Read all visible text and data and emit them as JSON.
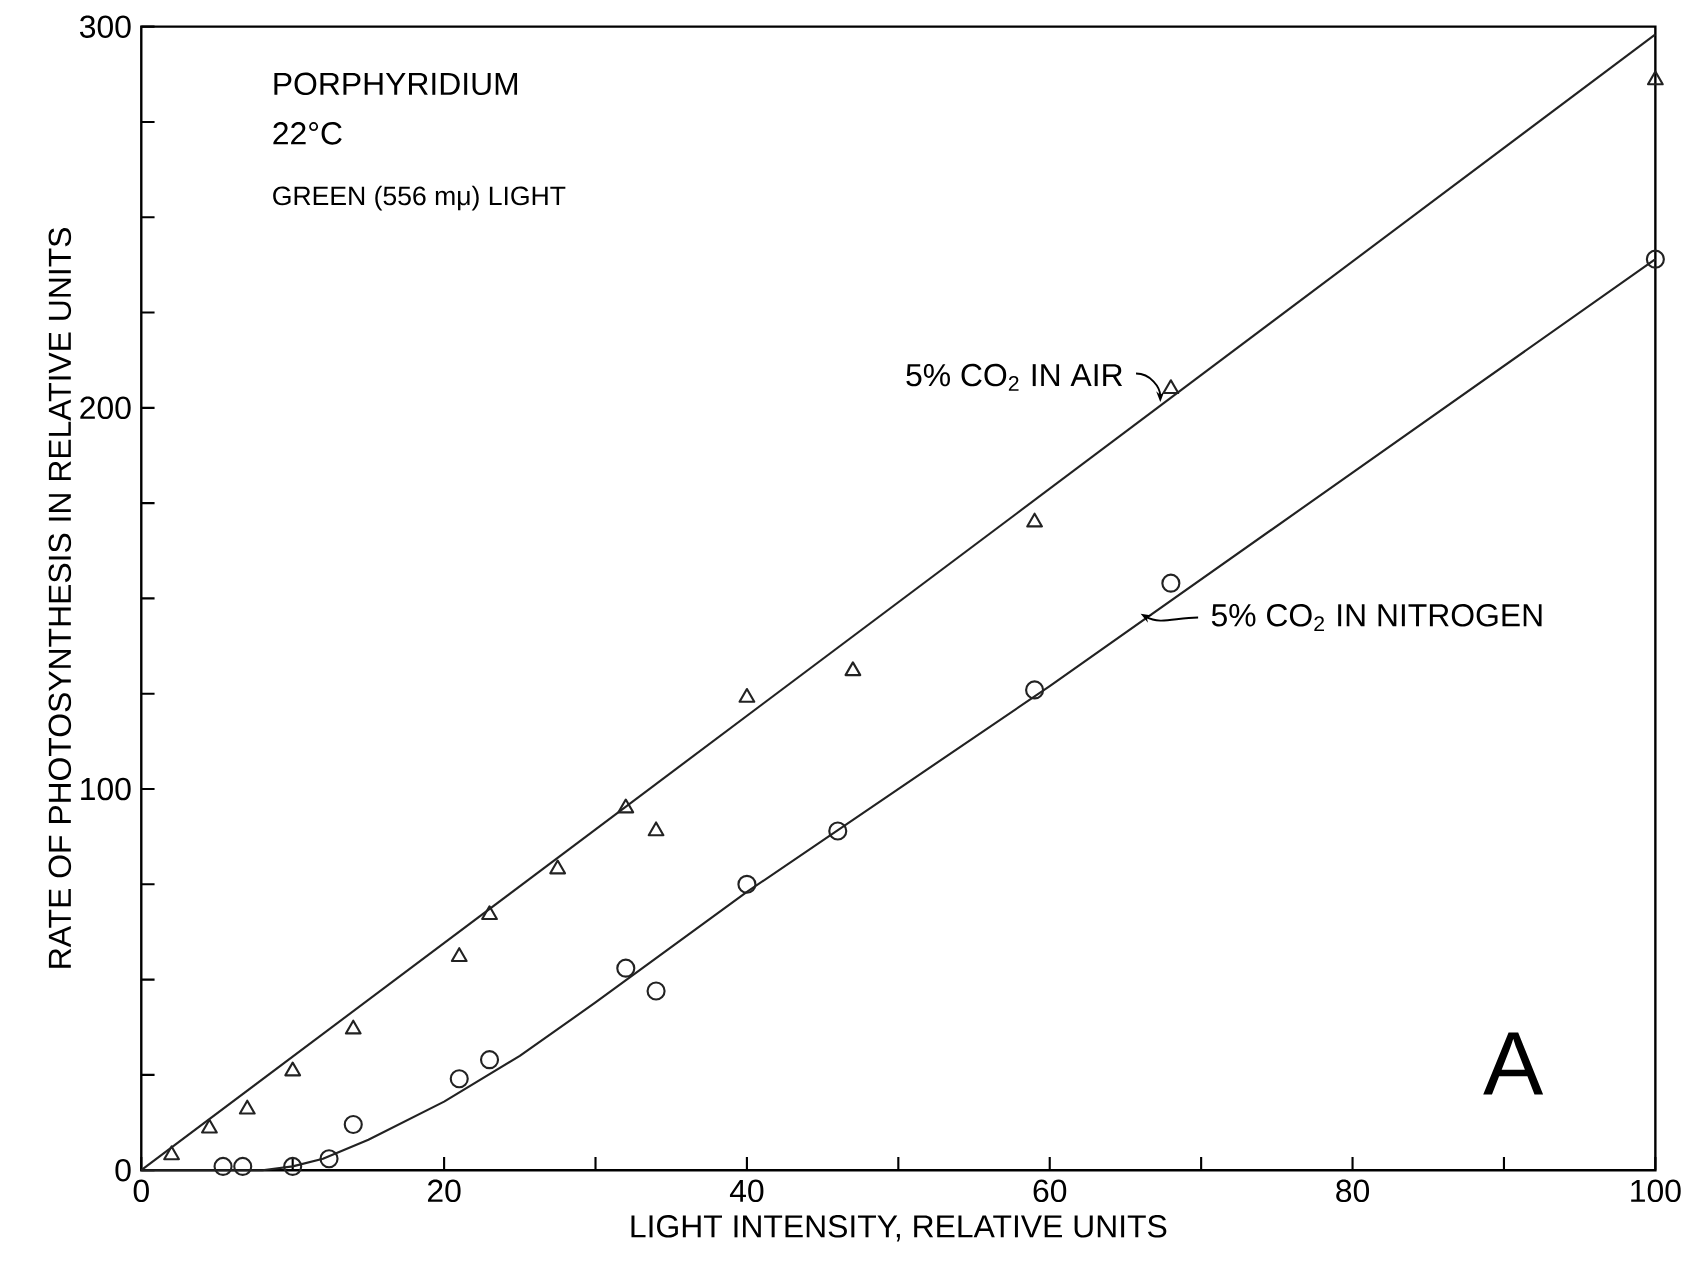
{
  "chart_data": {
    "type": "scatter",
    "xlabel": "LIGHT INTENSITY, RELATIVE UNITS",
    "ylabel": "RATE OF PHOTOSYNTHESIS IN RELATIVE UNITS",
    "annotations": [
      "PORPHYRIDIUM",
      "22°C",
      "GREEN (556 mμ) LIGHT",
      "A"
    ],
    "xlim": [
      0,
      100
    ],
    "ylim": [
      0,
      300
    ],
    "xticks": [
      0,
      {
        "value": 10,
        "label": null
      },
      20,
      {
        "value": 30,
        "label": null
      },
      40,
      {
        "value": 50,
        "label": null
      },
      60,
      {
        "value": 70,
        "label": null
      },
      80,
      {
        "value": 90,
        "label": null
      },
      100
    ],
    "yticks": [
      0,
      {
        "value": 25,
        "label": null
      },
      {
        "value": 50,
        "label": null
      },
      {
        "value": 75,
        "label": null
      },
      100,
      {
        "value": 125,
        "label": null
      },
      {
        "value": 150,
        "label": null
      },
      {
        "value": 175,
        "label": null
      },
      200,
      {
        "value": 225,
        "label": null
      },
      {
        "value": 250,
        "label": null
      },
      {
        "value": 275,
        "label": null
      },
      300
    ],
    "grid": false,
    "series": [
      {
        "name": "5% CO$_{2}$ IN AIR",
        "color": "#222222",
        "marker": "triangle",
        "x": [
          2,
          4.5,
          7,
          10,
          14,
          21,
          23,
          27.5,
          32,
          34,
          40,
          47,
          59,
          68,
          100
        ],
        "values": [
          4,
          11,
          16,
          26,
          37,
          56,
          67,
          79,
          95,
          89,
          124,
          131,
          170,
          205,
          286
        ]
      },
      {
        "name": "5% CO$_{2}$ IN NITROGEN",
        "color": "#222222",
        "marker": "circle",
        "x": [
          5.4,
          6.7,
          10,
          12.4,
          14,
          21,
          23,
          32,
          34,
          40,
          46,
          59,
          68,
          100
        ],
        "values": [
          1,
          1,
          1,
          3,
          12,
          24,
          29,
          53,
          47,
          75,
          89,
          126,
          154,
          239
        ]
      },
      {
        "type": "line",
        "color": "#222222",
        "marker": "none",
        "x": [
          0,
          100
        ],
        "values": [
          0,
          298
        ]
      },
      {
        "type": "line",
        "color": "#222222",
        "marker": "none",
        "x": [
          0,
          8,
          10,
          12,
          15,
          20,
          25,
          30,
          40,
          60,
          100
        ],
        "values": [
          0,
          0,
          1,
          3,
          8,
          18,
          30,
          44,
          73,
          127,
          239
        ]
      }
    ]
  }
}
